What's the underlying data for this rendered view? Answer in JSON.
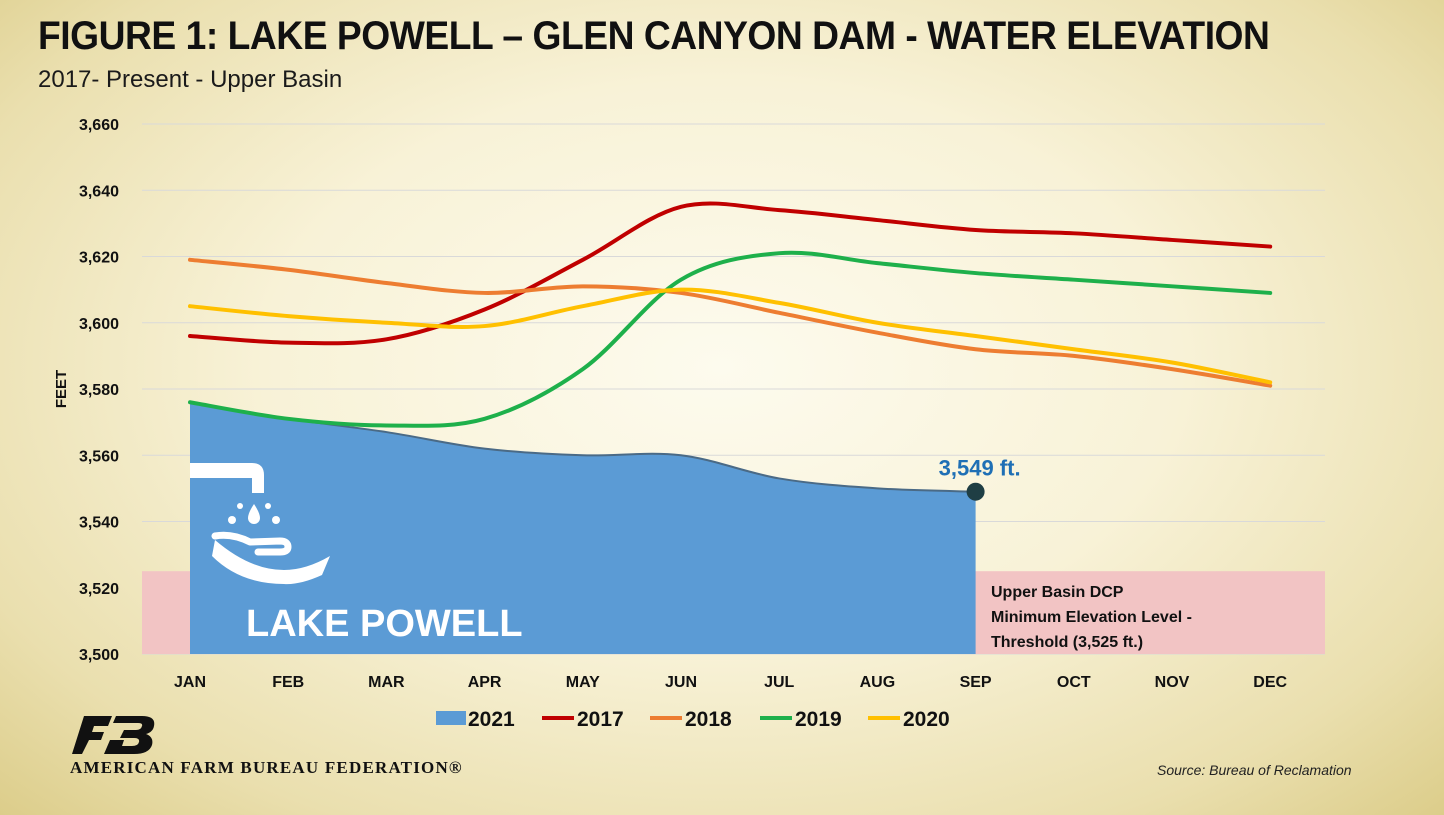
{
  "title": "FIGURE 1: LAKE POWELL – GLEN CANYON DAM - WATER ELEVATION",
  "subtitle": "2017- Present - Upper Basin",
  "organization": "AMERICAN FARM BUREAU FEDERATION®",
  "logo_text": "FB",
  "source": "Source: Bureau of Reclamation",
  "colors": {
    "2021": "#5b9bd5",
    "2017": "#c00000",
    "2018": "#ed7d31",
    "2019": "#1eb04b",
    "2020": "#ffc000",
    "threshold_band": "#f2c4c4",
    "grid": "#d9d9d9"
  },
  "icon": "faucet-hand-water-icon",
  "chart_data": {
    "type": "line",
    "title": "FIGURE 1: LAKE POWELL – GLEN CANYON DAM - WATER ELEVATION",
    "subtitle": "2017- Present - Upper Basin",
    "ylabel": "FEET",
    "xlabel": "",
    "categories": [
      "JAN",
      "FEB",
      "MAR",
      "APR",
      "MAY",
      "JUN",
      "JUL",
      "AUG",
      "SEP",
      "OCT",
      "NOV",
      "DEC"
    ],
    "ylim": [
      3500,
      3660
    ],
    "yticks": [
      3500,
      3520,
      3540,
      3560,
      3580,
      3600,
      3620,
      3640,
      3660
    ],
    "ytick_labels": [
      "3,500",
      "3,520",
      "3,540",
      "3,560",
      "3,580",
      "3,600",
      "3,620",
      "3,640",
      "3,660"
    ],
    "grid": true,
    "legend_position": "bottom",
    "series": [
      {
        "name": "2021",
        "style": "area",
        "values": [
          3576,
          3571,
          3567,
          3562,
          3560,
          3560,
          3553,
          3550,
          3549,
          null,
          null,
          null
        ]
      },
      {
        "name": "2017",
        "style": "line",
        "values": [
          3596,
          3594,
          3595,
          3604,
          3619,
          3635,
          3634,
          3631,
          3628,
          3627,
          3625,
          3623
        ]
      },
      {
        "name": "2018",
        "style": "line",
        "values": [
          3619,
          3616,
          3612,
          3609,
          3611,
          3609,
          3603,
          3597,
          3592,
          3590,
          3586,
          3581
        ]
      },
      {
        "name": "2019",
        "style": "line",
        "values": [
          3576,
          3571,
          3569,
          3571,
          3586,
          3613,
          3621,
          3618,
          3615,
          3613,
          3611,
          3609
        ]
      },
      {
        "name": "2020",
        "style": "line",
        "values": [
          3605,
          3602,
          3600,
          3599,
          3605,
          3610,
          3606,
          3600,
          3596,
          3592,
          3588,
          3582
        ]
      }
    ],
    "annotations": {
      "point_label": "3,549 ft.",
      "area_label": "LAKE POWELL",
      "threshold_value": 3525,
      "threshold_label_lines": [
        "Upper Basin DCP",
        "Minimum Elevation Level -",
        "Threshold (3,525 ft.)"
      ]
    }
  }
}
